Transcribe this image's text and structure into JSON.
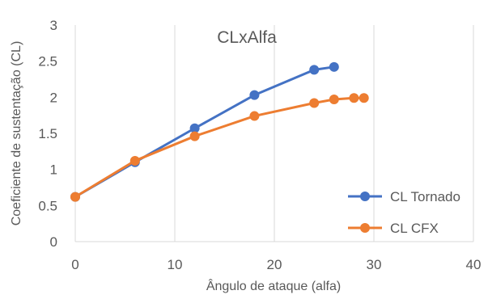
{
  "chart_data": {
    "type": "line",
    "title": "CLxAlfa",
    "xlabel": "Ângulo de ataque (alfa)",
    "ylabel": "Coeficiente de sustentação (CL)",
    "xlim": [
      0,
      40
    ],
    "ylim": [
      0,
      3
    ],
    "x_ticks": [
      0,
      10,
      20,
      30,
      40
    ],
    "y_ticks": [
      0,
      0.5,
      1,
      1.5,
      2,
      2.5,
      3
    ],
    "x_tick_labels": [
      "0",
      "10",
      "20",
      "30",
      "40"
    ],
    "y_tick_labels": [
      "0",
      "0.5",
      "1",
      "1.5",
      "2",
      "2.5",
      "3"
    ],
    "grid": {
      "horizontal": false,
      "vertical": true
    },
    "legend_position": "bottom-right",
    "series": [
      {
        "name": "CL Tornado",
        "color": "#4472c4",
        "x": [
          0,
          6,
          12,
          18,
          24,
          26
        ],
        "y": [
          0.62,
          1.1,
          1.57,
          2.03,
          2.38,
          2.42
        ]
      },
      {
        "name": "CL CFX",
        "color": "#ed7d31",
        "x": [
          0,
          6,
          12,
          18,
          24,
          26,
          28,
          29
        ],
        "y": [
          0.62,
          1.12,
          1.46,
          1.74,
          1.92,
          1.97,
          1.99,
          1.99
        ]
      }
    ]
  }
}
